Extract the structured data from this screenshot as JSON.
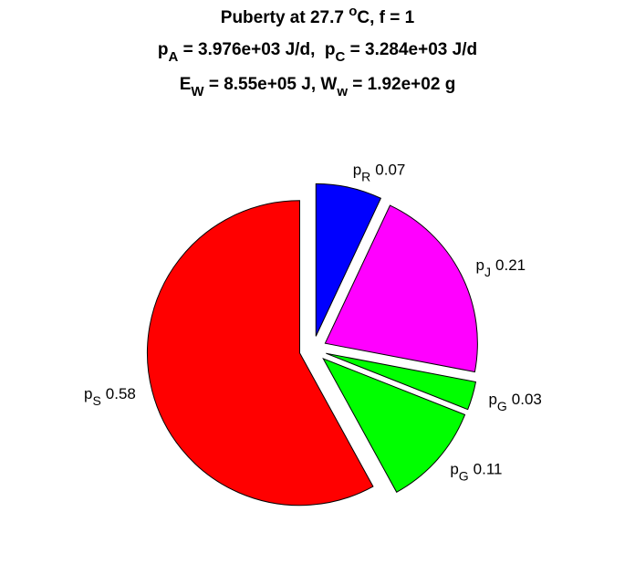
{
  "chart_data": {
    "type": "pie",
    "title": [
      [
        {
          "text": "Puberty at 27.7 "
        },
        {
          "text": "o",
          "script": "sup"
        },
        {
          "text": "C, f = 1"
        }
      ],
      [
        {
          "text": "p"
        },
        {
          "text": "A",
          "script": "sub"
        },
        {
          "text": " = 3.976e+03 J/d,  p"
        },
        {
          "text": "C",
          "script": "sub"
        },
        {
          "text": " = 3.284e+03 J/d"
        }
      ],
      [
        {
          "text": "E"
        },
        {
          "text": "W",
          "script": "sub"
        },
        {
          "text": " = 8.55e+05 J, W"
        },
        {
          "text": "w",
          "script": "sub"
        },
        {
          "text": " = 1.92e+02 g"
        }
      ]
    ],
    "categories": [
      {
        "text": "p",
        "sub": "R"
      },
      {
        "text": "p",
        "sub": "J"
      },
      {
        "text": "p",
        "sub": "G"
      },
      {
        "text": "p",
        "sub": "G"
      },
      {
        "text": "p",
        "sub": "S"
      }
    ],
    "values": [
      0.07,
      0.21,
      0.03,
      0.11,
      0.58
    ],
    "colors": [
      "#0000ff",
      "#ff00ff",
      "#00ff00",
      "#00ff00",
      "#ff0000"
    ],
    "exploded": true
  }
}
